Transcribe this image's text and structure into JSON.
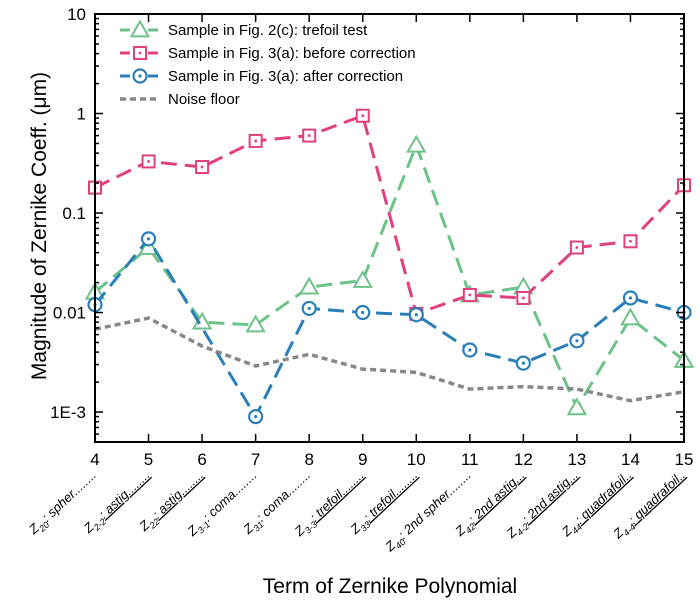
{
  "chart_data": {
    "type": "line",
    "yscale": "log",
    "xlabel": "Term of Zernike Polynomial",
    "ylabel": "Magnitude of  Zernike Coeff. (μm)",
    "xlim": [
      4,
      15
    ],
    "ylim": [
      0.0005,
      10
    ],
    "x_ticks": [
      "4",
      "5",
      "6",
      "7",
      "8",
      "9",
      "10",
      "11",
      "12",
      "13",
      "14",
      "15"
    ],
    "y_ticks": [
      {
        "value": 10,
        "label": "10"
      },
      {
        "value": 1,
        "label": "1"
      },
      {
        "value": 0.1,
        "label": "0.1"
      },
      {
        "value": 0.01,
        "label": "0.01"
      },
      {
        "value": 0.001,
        "label": "1E-3"
      }
    ],
    "term_labels": [
      {
        "x": 4,
        "z": "Z",
        "sub": "20",
        "text": ": spher",
        "dots": "........",
        "underline": false
      },
      {
        "x": 5,
        "z": "Z",
        "sub": "2-2",
        "text": ": astig",
        "dots": "........",
        "underline": true
      },
      {
        "x": 6,
        "z": "Z",
        "sub": "22",
        "text": ": astig",
        "dots": "........",
        "underline": true
      },
      {
        "x": 7,
        "z": "Z",
        "sub": "3-1",
        "text": ": coma",
        "dots": "........",
        "underline": false
      },
      {
        "x": 8,
        "z": "Z",
        "sub": "31",
        "text": ": coma",
        "dots": "........",
        "underline": false
      },
      {
        "x": 9,
        "z": "Z",
        "sub": "3-3",
        "text": ": trefoil",
        "dots": "........",
        "underline": true
      },
      {
        "x": 10,
        "z": "Z",
        "sub": "33",
        "text": ": trefoil",
        "dots": "........",
        "underline": true
      },
      {
        "x": 11,
        "z": "Z",
        "sub": "40",
        "text": ": 2nd spher",
        "dots": "........",
        "underline": false
      },
      {
        "x": 12,
        "z": "Z",
        "sub": "42",
        "text": ": 2nd astig",
        "dots": "...",
        "underline": true
      },
      {
        "x": 13,
        "z": "Z",
        "sub": "4-2",
        "text": ": 2nd astig",
        "dots": "...",
        "underline": true
      },
      {
        "x": 14,
        "z": "Z",
        "sub": "44",
        "text": ": quadrafoil",
        "dots": "..",
        "underline": true
      },
      {
        "x": 15,
        "z": "Z",
        "sub": "4-4",
        "text": ": quadrafoil",
        "dots": "..",
        "underline": true
      }
    ],
    "series": [
      {
        "name": "Sample in Fig. 2(c): trefoil test",
        "color": "#6dc28a",
        "marker": "triangle",
        "dash": "dashed",
        "x": [
          4,
          5,
          6,
          7,
          8,
          9,
          10,
          11,
          12,
          13,
          14,
          15
        ],
        "values": [
          0.016,
          0.045,
          0.008,
          0.0075,
          0.018,
          0.021,
          0.48,
          0.015,
          0.018,
          0.0011,
          0.0088,
          0.0033
        ]
      },
      {
        "name": "Sample in Fig. 3(a): before correction",
        "color": "#e0407e",
        "marker": "square",
        "dash": "dashed",
        "x": [
          4,
          5,
          6,
          7,
          8,
          9,
          10,
          11,
          12,
          13,
          14,
          15
        ],
        "values": [
          0.18,
          0.33,
          0.29,
          0.53,
          0.6,
          0.95,
          0.0097,
          0.015,
          0.014,
          0.045,
          0.052,
          0.19
        ]
      },
      {
        "name": "Sample in Fig. 3(a): after correction",
        "color": "#2a7fb8",
        "marker": "circle",
        "dash": "dashed",
        "x": [
          4,
          5,
          6,
          7,
          8,
          9,
          10,
          11,
          12,
          13,
          14,
          15
        ],
        "values": [
          0.012,
          0.055,
          null,
          0.0009,
          0.011,
          0.01,
          0.0095,
          0.0042,
          0.0031,
          0.0052,
          0.014,
          0.01
        ]
      },
      {
        "name": "Noise floor",
        "color": "#888888",
        "marker": "none",
        "dash": "short",
        "x": [
          4,
          5,
          6,
          7,
          8,
          9,
          10,
          11,
          12,
          13,
          14,
          15
        ],
        "values": [
          0.0068,
          0.0088,
          0.0046,
          0.0029,
          0.0038,
          0.0027,
          0.0025,
          0.0017,
          0.0018,
          0.0017,
          0.0013,
          0.0016
        ]
      }
    ]
  }
}
